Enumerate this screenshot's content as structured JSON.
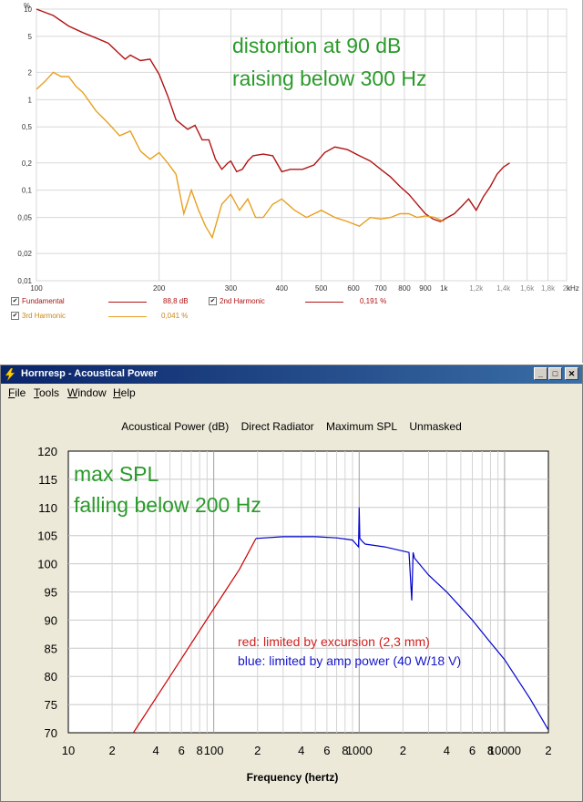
{
  "top_chart": {
    "y_unit": "%",
    "x_unit": "kHz",
    "annotation_line1": "distortion at 90 dB",
    "annotation_line2": "raising below 300 Hz",
    "y_ticks": [
      "10",
      "5",
      "2",
      "1",
      "0,5",
      "0,2",
      "0,1",
      "0,05",
      "0,02",
      "0,01"
    ],
    "x_ticks": [
      "100",
      "200",
      "300",
      "400",
      "500",
      "600",
      "700",
      "800",
      "900",
      "1k",
      "1,2k",
      "1,4k",
      "1,6k",
      "1,8k",
      "2k"
    ],
    "legend": [
      {
        "name": "Fundamental",
        "value": "88,8 dB",
        "checked": "✔"
      },
      {
        "name": "2nd Harmonic",
        "value": "0,191 %",
        "checked": "✔"
      },
      {
        "name": "3rd Harmonic",
        "value": "0,041 %",
        "checked": "✔"
      }
    ]
  },
  "window": {
    "title": "Hornresp - Acoustical Power",
    "menu": [
      "File",
      "Tools",
      "Window",
      "Help"
    ],
    "menu_accel": [
      "F",
      "T",
      "W",
      "H"
    ],
    "menu_rest": [
      "ile",
      "ools",
      "indow",
      "elp"
    ],
    "header": [
      "Acoustical Power (dB)",
      "Direct Radiator",
      "Maximum SPL",
      "Unmasked"
    ],
    "minimize": "_",
    "maximize": "□",
    "close": "✕"
  },
  "bottom_chart": {
    "annotation_line1": "max SPL",
    "annotation_line2": "falling below 200 Hz",
    "note_red": "red: limited by excursion (2,3 mm)",
    "note_blue": "blue: limited by amp power (40 W/18 V)",
    "xlabel": "Frequency (hertz)",
    "y_ticks": [
      "120",
      "115",
      "110",
      "105",
      "100",
      "95",
      "90",
      "85",
      "80",
      "75",
      "70"
    ],
    "x_ticks": [
      "10",
      "2",
      "4",
      "6",
      "8",
      "100",
      "2",
      "4",
      "6",
      "8",
      "1000",
      "2",
      "4",
      "6",
      "8",
      "10000",
      "2"
    ]
  },
  "chart_data": [
    {
      "type": "line",
      "x_scale": "log",
      "y_scale": "log",
      "xlim": [
        100,
        2000
      ],
      "ylim": [
        0.01,
        10
      ],
      "grid": true,
      "series": [
        {
          "name": "2nd Harmonic",
          "color": "#b01515",
          "x": [
            100,
            110,
            120,
            130,
            140,
            150,
            165,
            170,
            180,
            190,
            200,
            210,
            220,
            235,
            245,
            255,
            260,
            265,
            275,
            285,
            295,
            300,
            310,
            320,
            330,
            340,
            360,
            380,
            400,
            420,
            450,
            480,
            510,
            540,
            580,
            620,
            660,
            700,
            740,
            780,
            820,
            860,
            900,
            940,
            980,
            1020,
            1060,
            1100,
            1150,
            1200,
            1250,
            1300,
            1350,
            1400,
            1450
          ],
          "y": [
            10,
            8.5,
            6.5,
            5.5,
            4.8,
            4.2,
            2.8,
            3.1,
            2.7,
            2.8,
            1.9,
            1.1,
            0.6,
            0.47,
            0.52,
            0.36,
            0.36,
            0.36,
            0.22,
            0.17,
            0.2,
            0.21,
            0.16,
            0.17,
            0.21,
            0.24,
            0.25,
            0.24,
            0.16,
            0.17,
            0.17,
            0.19,
            0.26,
            0.3,
            0.28,
            0.24,
            0.21,
            0.17,
            0.14,
            0.11,
            0.09,
            0.07,
            0.055,
            0.048,
            0.045,
            0.05,
            0.055,
            0.065,
            0.08,
            0.06,
            0.085,
            0.11,
            0.15,
            0.18,
            0.2
          ]
        },
        {
          "name": "3rd Harmonic",
          "color": "#e8a020",
          "x": [
            100,
            105,
            110,
            115,
            120,
            125,
            130,
            140,
            150,
            160,
            170,
            180,
            190,
            200,
            210,
            220,
            230,
            240,
            250,
            260,
            270,
            285,
            300,
            315,
            330,
            345,
            360,
            380,
            400,
            430,
            460,
            500,
            540,
            580,
            620,
            660,
            700,
            740,
            780,
            820,
            860,
            900,
            950,
            1000
          ],
          "y": [
            1.3,
            1.6,
            2.0,
            1.8,
            1.8,
            1.4,
            1.2,
            0.75,
            0.55,
            0.4,
            0.45,
            0.27,
            0.22,
            0.26,
            0.2,
            0.15,
            0.055,
            0.1,
            0.06,
            0.04,
            0.03,
            0.07,
            0.09,
            0.06,
            0.08,
            0.05,
            0.05,
            0.07,
            0.08,
            0.06,
            0.05,
            0.06,
            0.05,
            0.045,
            0.04,
            0.05,
            0.048,
            0.05,
            0.055,
            0.055,
            0.05,
            0.052,
            0.05,
            0.045
          ]
        }
      ]
    },
    {
      "type": "line",
      "x_scale": "log",
      "xlim": [
        10,
        20000
      ],
      "ylim": [
        70,
        120
      ],
      "grid": true,
      "xlabel": "Frequency (hertz)",
      "series": [
        {
          "name": "red: limited by excursion (2,3 mm)",
          "color": "#cc0000",
          "x": [
            28,
            50,
            100,
            150,
            195
          ],
          "y": [
            70,
            80,
            92,
            99,
            104.5
          ]
        },
        {
          "name": "blue: limited by amp power (40 W/18 V)",
          "color": "#0000cc",
          "x": [
            195,
            300,
            500,
            700,
            900,
            990,
            1000,
            1010,
            1050,
            1100,
            1500,
            2200,
            2300,
            2350,
            2400,
            3000,
            4000,
            6000,
            8000,
            10000,
            15000,
            20000
          ],
          "y": [
            104.5,
            104.8,
            104.8,
            104.6,
            104.2,
            103,
            110,
            104.5,
            104,
            103.5,
            103.0,
            102,
            93.5,
            102,
            101,
            98,
            95,
            90,
            86,
            83,
            76,
            70.5
          ]
        }
      ]
    }
  ]
}
